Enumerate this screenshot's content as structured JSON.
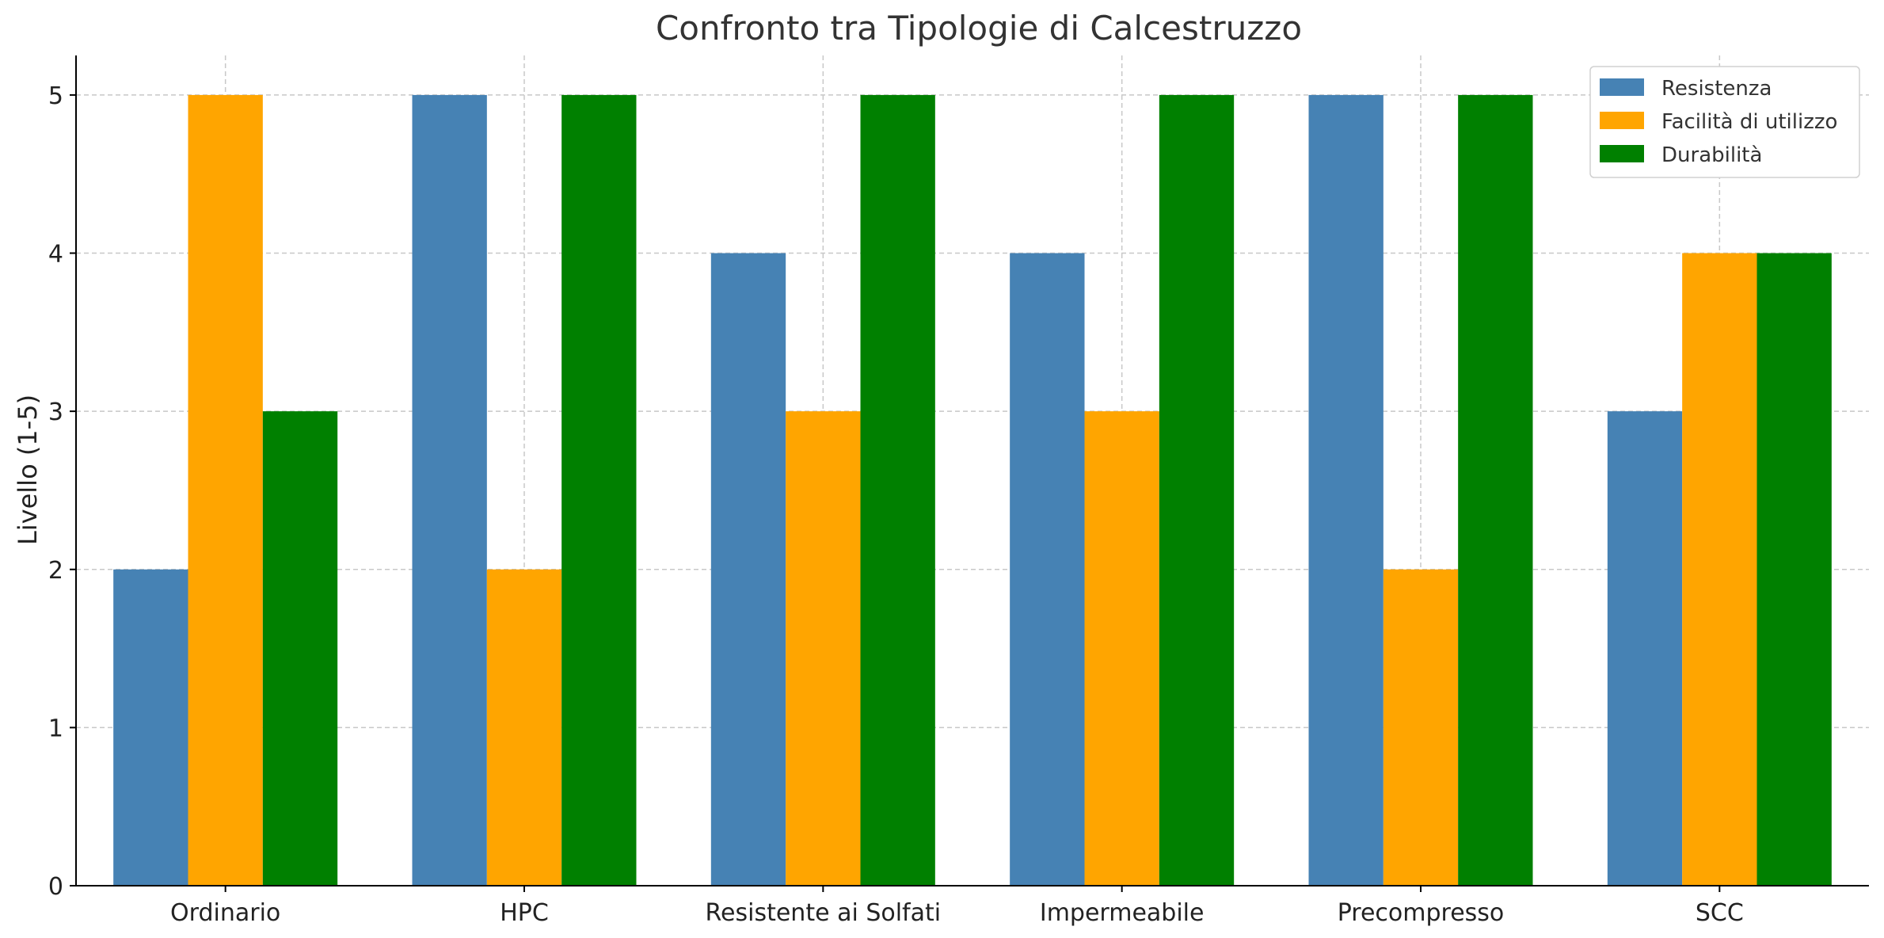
{
  "chart_data": {
    "type": "bar",
    "title": "Confronto tra Tipologie di Calcestruzzo",
    "xlabel": "",
    "ylabel": "Livello (1-5)",
    "ylim": [
      0,
      5.25
    ],
    "yticks": [
      0,
      1,
      2,
      3,
      4,
      5
    ],
    "grid": true,
    "legend_position": "top-right",
    "categories": [
      "Ordinario",
      "HPC",
      "Resistente ai Solfati",
      "Impermeabile",
      "Precompresso",
      "SCC"
    ],
    "series": [
      {
        "name": "Resistenza",
        "color": "#4682B4",
        "values": [
          2,
          5,
          4,
          4,
          5,
          3
        ]
      },
      {
        "name": "Facilità di utilizzo",
        "color": "#FFA500",
        "values": [
          5,
          2,
          3,
          3,
          2,
          4
        ]
      },
      {
        "name": "Durabilità",
        "color": "#008000",
        "values": [
          3,
          5,
          5,
          5,
          5,
          4
        ]
      }
    ]
  }
}
